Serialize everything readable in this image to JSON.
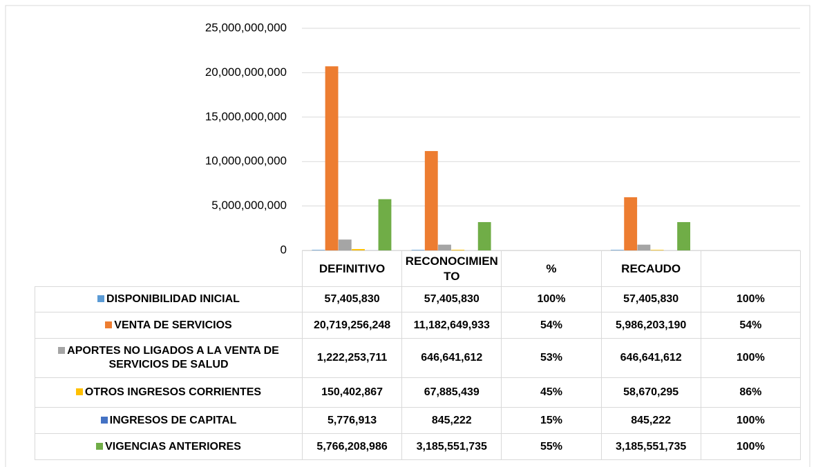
{
  "chart_data": {
    "type": "bar",
    "categories": [
      "DEFINITIVO",
      "RECONOCIMIENTO",
      "%",
      "RECAUDO",
      null
    ],
    "series": [
      {
        "name": "DISPONIBILIDAD INICIAL",
        "color": "#5b9bd5",
        "values": [
          57405830,
          57405830,
          1,
          57405830,
          1
        ],
        "value_labels": [
          "57,405,830",
          "57,405,830",
          "100%",
          "57,405,830",
          "100%"
        ]
      },
      {
        "name": "VENTA DE SERVICIOS",
        "color": "#ed7d31",
        "values": [
          20719256248,
          11182649933,
          0.54,
          5986203190,
          0.54
        ],
        "value_labels": [
          "20,719,256,248",
          "11,182,649,933",
          "54%",
          "5,986,203,190",
          "54%"
        ]
      },
      {
        "name": "APORTES NO LIGADOS A LA VENTA DE SERVICIOS DE SALUD",
        "color": "#a5a5a5",
        "values": [
          1222253711,
          646641612,
          0.53,
          646641612,
          1
        ],
        "value_labels": [
          "1,222,253,711",
          "646,641,612",
          "53%",
          "646,641,612",
          "100%"
        ]
      },
      {
        "name": "OTROS INGRESOS CORRIENTES",
        "color": "#ffc000",
        "values": [
          150402867,
          67885439,
          0.45,
          58670295,
          0.86
        ],
        "value_labels": [
          "150,402,867",
          "67,885,439",
          "45%",
          "58,670,295",
          "86%"
        ]
      },
      {
        "name": "INGRESOS DE CAPITAL",
        "color": "#4472c4",
        "values": [
          5776913,
          845222,
          0.15,
          845222,
          1
        ],
        "value_labels": [
          "5,776,913",
          "845,222",
          "15%",
          "845,222",
          "100%"
        ]
      },
      {
        "name": "VIGENCIAS ANTERIORES",
        "color": "#70ad47",
        "values": [
          5766208986,
          3185551735,
          0.55,
          3185551735,
          1
        ],
        "value_labels": [
          "5,766,208,986",
          "3,185,551,735",
          "55%",
          "3,185,551,735",
          "100%"
        ]
      }
    ],
    "ylim": [
      0,
      25000000000
    ],
    "yticks": [
      0,
      {
        "value": 5000000000,
        "label": "5,000,000,000"
      },
      {
        "value": 10000000000,
        "label": "10,000,000,000"
      },
      {
        "value": 15000000000,
        "label": "15,000,000,000"
      },
      {
        "value": 20000000000,
        "label": "20,000,000,000"
      },
      {
        "value": 25000000000,
        "label": "25,000,000,000"
      }
    ],
    "grid": true
  }
}
